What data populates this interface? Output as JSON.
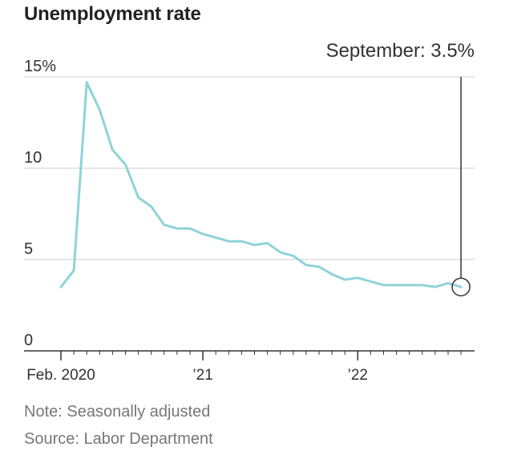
{
  "chart_data": {
    "type": "line",
    "title": "Unemployment rate",
    "annotation": "September: 3.5%",
    "xlabel": "",
    "ylabel": "",
    "ylim": [
      0,
      15
    ],
    "yticks": [
      {
        "value": 0,
        "label": "0"
      },
      {
        "value": 5,
        "label": "5"
      },
      {
        "value": 10,
        "label": "10"
      },
      {
        "value": 15,
        "label": "15%"
      }
    ],
    "xtick_labels": [
      {
        "index": 0,
        "label": "Feb. 2020"
      },
      {
        "index": 11,
        "label": "’21"
      },
      {
        "index": 23,
        "label": "’22"
      }
    ],
    "grid": true,
    "series": [
      {
        "name": "Unemployment rate",
        "color": "#8fd3d7",
        "x": [
          "2020-02",
          "2020-03",
          "2020-04",
          "2020-05",
          "2020-06",
          "2020-07",
          "2020-08",
          "2020-09",
          "2020-10",
          "2020-11",
          "2020-12",
          "2021-01",
          "2021-02",
          "2021-03",
          "2021-04",
          "2021-05",
          "2021-06",
          "2021-07",
          "2021-08",
          "2021-09",
          "2021-10",
          "2021-11",
          "2021-12",
          "2022-01",
          "2022-02",
          "2022-03",
          "2022-04",
          "2022-05",
          "2022-06",
          "2022-07",
          "2022-08",
          "2022-09"
        ],
        "values": [
          3.5,
          4.4,
          14.7,
          13.2,
          11.0,
          10.2,
          8.4,
          7.9,
          6.9,
          6.7,
          6.7,
          6.4,
          6.2,
          6.0,
          6.0,
          5.8,
          5.9,
          5.4,
          5.2,
          4.7,
          4.6,
          4.2,
          3.9,
          4.0,
          3.8,
          3.6,
          3.6,
          3.6,
          3.6,
          3.5,
          3.7,
          3.5
        ]
      }
    ]
  },
  "notes": {
    "note": "Note: Seasonally adjusted",
    "source": "Source: Labor Department"
  },
  "colors": {
    "line": "#8fd3d7",
    "grid": "#dddddd",
    "axis": "#333333",
    "marker": "#333333"
  }
}
